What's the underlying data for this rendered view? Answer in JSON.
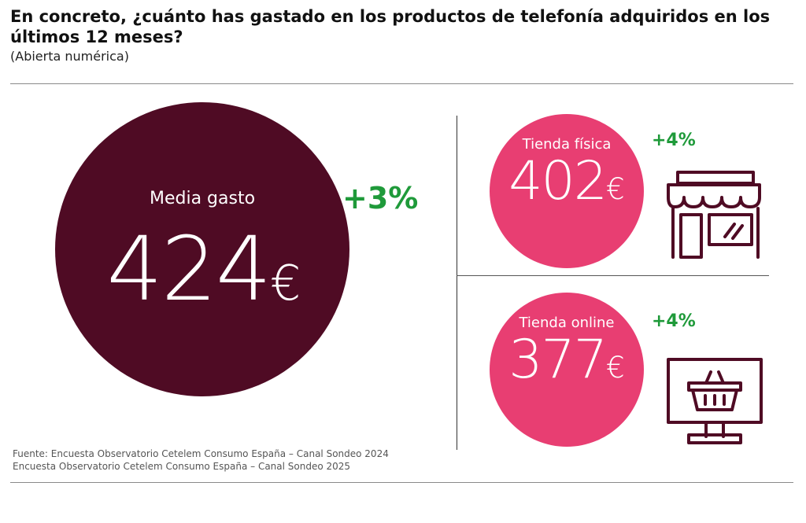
{
  "header": {
    "title": "En concreto, ¿cuánto has gastado en los productos de telefonía adquiridos en los últimos 12 meses?",
    "subtitle": "(Abierta numérica)"
  },
  "main_metric": {
    "label": "Media gasto",
    "value": "424",
    "currency": "€",
    "change": "+3%"
  },
  "physical_store": {
    "label": "Tienda física",
    "value": "402",
    "currency": "€",
    "change": "+4%",
    "icon": "storefront-icon"
  },
  "online_store": {
    "label": "Tienda online",
    "value": "377",
    "currency": "€",
    "change": "+4%",
    "icon": "monitor-basket-icon"
  },
  "footer": {
    "source_line1": "Fuente: Encuesta Observatorio Cetelem Consumo España – Canal Sondeo 2024",
    "source_line2": "Encuesta Observatorio Cetelem Consumo España – Canal Sondeo 2025"
  },
  "colors": {
    "main_circle": "#4f0b24",
    "secondary_circle": "#e83e72",
    "positive_change": "#1f9a3a",
    "icon_stroke": "#4f0b24"
  },
  "chart_data": {
    "type": "table",
    "title": "En concreto, ¿cuánto has gastado en los productos de telefonía adquiridos en los últimos 12 meses?",
    "subtitle": "(Abierta numérica)",
    "categories": [
      "Media gasto",
      "Tienda física",
      "Tienda online"
    ],
    "values": [
      424,
      402,
      377
    ],
    "unit": "€",
    "changes": [
      "+3%",
      "+4%",
      "+4%"
    ]
  }
}
